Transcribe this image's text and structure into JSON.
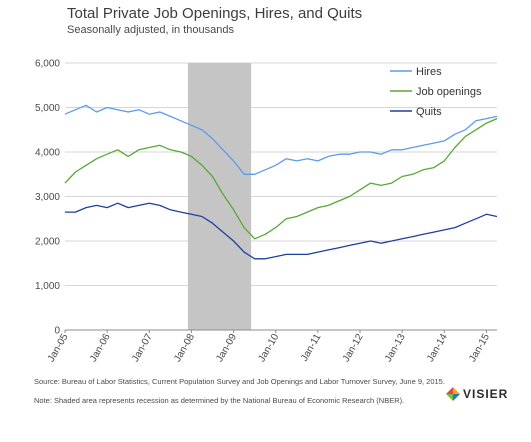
{
  "chart": {
    "title": "Total Private Job Openings, Hires, and Quits",
    "subtitle": "Seasonally adjusted, in thousands"
  },
  "footnotes": {
    "source": "Source: Bureau of Labor Statistics, Current Population Survey and Job Openings and Labor Turnover Survey, June 9, 2015.",
    "note": "Note: Shaded area represents recession as determined by the National Bureau of Economic Research (NBER)."
  },
  "brand": {
    "name": "VISIER",
    "icon": "visier-logo-icon",
    "colors": [
      "#f5a623",
      "#1a7dc4",
      "#7ac143",
      "#e8473f"
    ]
  },
  "colors": {
    "hires": "#5b9bec",
    "job_openings": "#5aa832",
    "quits": "#1f3f9f",
    "recession_shade": "#c5c5c5",
    "grid": "#d6d6d6"
  },
  "chart_data": {
    "type": "line",
    "title": "Total Private Job Openings, Hires, and Quits",
    "subtitle": "Seasonally adjusted, in thousands",
    "xlabel": "",
    "ylabel": "",
    "ylim": [
      0,
      6000
    ],
    "yticks": [
      0,
      1000,
      2000,
      3000,
      4000,
      5000,
      6000
    ],
    "ytick_labels": [
      "0",
      "1,000",
      "2,000",
      "3,000",
      "4,000",
      "5,000",
      "6,000"
    ],
    "xlim": [
      "2005-01",
      "2015-04"
    ],
    "xtick_labels": [
      "Jan-05",
      "Jan-06",
      "Jan-07",
      "Jan-08",
      "Jan-09",
      "Jan-10",
      "Jan-11",
      "Jan-12",
      "Jan-13",
      "Jan-14",
      "Jan-15"
    ],
    "grid": "horizontal",
    "legend_position": "top-right",
    "recession_period": [
      "2007-12",
      "2009-06"
    ],
    "series": [
      {
        "name": "Hires",
        "color": "#5b9bec",
        "points": [
          [
            "2005-01",
            4850
          ],
          [
            "2005-04",
            4950
          ],
          [
            "2005-07",
            5050
          ],
          [
            "2005-10",
            4900
          ],
          [
            "2006-01",
            5000
          ],
          [
            "2006-04",
            4950
          ],
          [
            "2006-07",
            4900
          ],
          [
            "2006-10",
            4950
          ],
          [
            "2007-01",
            4850
          ],
          [
            "2007-04",
            4900
          ],
          [
            "2007-07",
            4800
          ],
          [
            "2007-10",
            4700
          ],
          [
            "2008-01",
            4600
          ],
          [
            "2008-04",
            4500
          ],
          [
            "2008-07",
            4300
          ],
          [
            "2008-10",
            4050
          ],
          [
            "2009-01",
            3800
          ],
          [
            "2009-04",
            3500
          ],
          [
            "2009-07",
            3500
          ],
          [
            "2009-10",
            3600
          ],
          [
            "2010-01",
            3700
          ],
          [
            "2010-04",
            3850
          ],
          [
            "2010-07",
            3800
          ],
          [
            "2010-10",
            3850
          ],
          [
            "2011-01",
            3800
          ],
          [
            "2011-04",
            3900
          ],
          [
            "2011-07",
            3950
          ],
          [
            "2011-10",
            3950
          ],
          [
            "2012-01",
            4000
          ],
          [
            "2012-04",
            4000
          ],
          [
            "2012-07",
            3950
          ],
          [
            "2012-10",
            4050
          ],
          [
            "2013-01",
            4050
          ],
          [
            "2013-04",
            4100
          ],
          [
            "2013-07",
            4150
          ],
          [
            "2013-10",
            4200
          ],
          [
            "2014-01",
            4250
          ],
          [
            "2014-04",
            4400
          ],
          [
            "2014-07",
            4500
          ],
          [
            "2014-10",
            4700
          ],
          [
            "2015-01",
            4750
          ],
          [
            "2015-04",
            4800
          ]
        ]
      },
      {
        "name": "Job openings",
        "color": "#5aa832",
        "points": [
          [
            "2005-01",
            3300
          ],
          [
            "2005-04",
            3550
          ],
          [
            "2005-07",
            3700
          ],
          [
            "2005-10",
            3850
          ],
          [
            "2006-01",
            3950
          ],
          [
            "2006-04",
            4050
          ],
          [
            "2006-07",
            3900
          ],
          [
            "2006-10",
            4050
          ],
          [
            "2007-01",
            4100
          ],
          [
            "2007-04",
            4150
          ],
          [
            "2007-07",
            4050
          ],
          [
            "2007-10",
            4000
          ],
          [
            "2008-01",
            3900
          ],
          [
            "2008-04",
            3700
          ],
          [
            "2008-07",
            3450
          ],
          [
            "2008-10",
            3050
          ],
          [
            "2009-01",
            2700
          ],
          [
            "2009-04",
            2300
          ],
          [
            "2009-07",
            2050
          ],
          [
            "2009-10",
            2150
          ],
          [
            "2010-01",
            2300
          ],
          [
            "2010-04",
            2500
          ],
          [
            "2010-07",
            2550
          ],
          [
            "2010-10",
            2650
          ],
          [
            "2011-01",
            2750
          ],
          [
            "2011-04",
            2800
          ],
          [
            "2011-07",
            2900
          ],
          [
            "2011-10",
            3000
          ],
          [
            "2012-01",
            3150
          ],
          [
            "2012-04",
            3300
          ],
          [
            "2012-07",
            3250
          ],
          [
            "2012-10",
            3300
          ],
          [
            "2013-01",
            3450
          ],
          [
            "2013-04",
            3500
          ],
          [
            "2013-07",
            3600
          ],
          [
            "2013-10",
            3650
          ],
          [
            "2014-01",
            3800
          ],
          [
            "2014-04",
            4100
          ],
          [
            "2014-07",
            4350
          ],
          [
            "2014-10",
            4500
          ],
          [
            "2015-01",
            4650
          ],
          [
            "2015-04",
            4750
          ]
        ]
      },
      {
        "name": "Quits",
        "color": "#1f3f9f",
        "points": [
          [
            "2005-01",
            2650
          ],
          [
            "2005-04",
            2650
          ],
          [
            "2005-07",
            2750
          ],
          [
            "2005-10",
            2800
          ],
          [
            "2006-01",
            2750
          ],
          [
            "2006-04",
            2850
          ],
          [
            "2006-07",
            2750
          ],
          [
            "2006-10",
            2800
          ],
          [
            "2007-01",
            2850
          ],
          [
            "2007-04",
            2800
          ],
          [
            "2007-07",
            2700
          ],
          [
            "2007-10",
            2650
          ],
          [
            "2008-01",
            2600
          ],
          [
            "2008-04",
            2550
          ],
          [
            "2008-07",
            2400
          ],
          [
            "2008-10",
            2200
          ],
          [
            "2009-01",
            2000
          ],
          [
            "2009-04",
            1750
          ],
          [
            "2009-07",
            1600
          ],
          [
            "2009-10",
            1600
          ],
          [
            "2010-01",
            1650
          ],
          [
            "2010-04",
            1700
          ],
          [
            "2010-07",
            1700
          ],
          [
            "2010-10",
            1700
          ],
          [
            "2011-01",
            1750
          ],
          [
            "2011-04",
            1800
          ],
          [
            "2011-07",
            1850
          ],
          [
            "2011-10",
            1900
          ],
          [
            "2012-01",
            1950
          ],
          [
            "2012-04",
            2000
          ],
          [
            "2012-07",
            1950
          ],
          [
            "2012-10",
            2000
          ],
          [
            "2013-01",
            2050
          ],
          [
            "2013-04",
            2100
          ],
          [
            "2013-07",
            2150
          ],
          [
            "2013-10",
            2200
          ],
          [
            "2014-01",
            2250
          ],
          [
            "2014-04",
            2300
          ],
          [
            "2014-07",
            2400
          ],
          [
            "2014-10",
            2500
          ],
          [
            "2015-01",
            2600
          ],
          [
            "2015-04",
            2550
          ]
        ]
      }
    ]
  }
}
